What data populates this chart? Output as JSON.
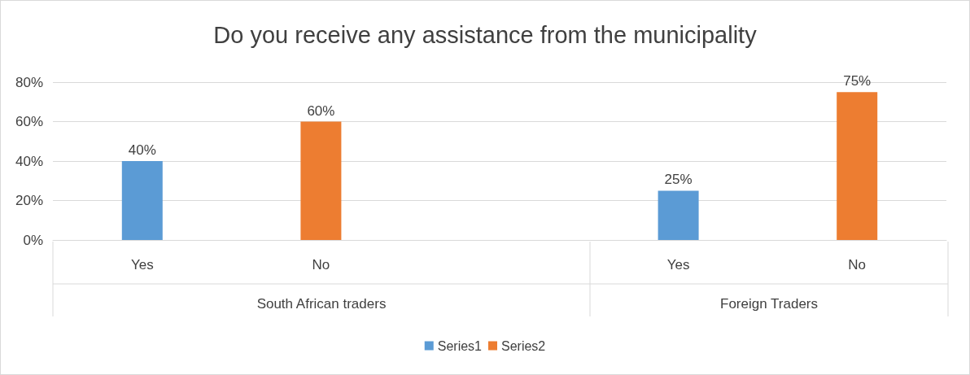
{
  "chart_data": {
    "type": "bar",
    "title": "Do you receive any assistance from the municipality",
    "categories": [
      "Yes",
      "No",
      null,
      "Yes",
      "No"
    ],
    "series": [
      {
        "name": "Series1",
        "color": "#5b9bd5",
        "values": [
          40,
          null,
          null,
          25,
          null
        ],
        "value_labels": [
          "40%",
          null,
          null,
          "25%",
          null
        ]
      },
      {
        "name": "Series2",
        "color": "#ed7d31",
        "values": [
          null,
          60,
          null,
          null,
          75
        ],
        "value_labels": [
          null,
          "60%",
          null,
          null,
          "75%"
        ]
      }
    ],
    "ylim": [
      0,
      80
    ],
    "yticks": [
      {
        "value": 0,
        "label": "0%"
      },
      {
        "value": 20,
        "label": "20%"
      },
      {
        "value": 40,
        "label": "40%"
      },
      {
        "value": 60,
        "label": "60%"
      },
      {
        "value": 80,
        "label": "80%"
      }
    ],
    "grid": "y",
    "legend": "bottom",
    "annotations": [
      "South African traders",
      "Foreign Traders"
    ]
  }
}
